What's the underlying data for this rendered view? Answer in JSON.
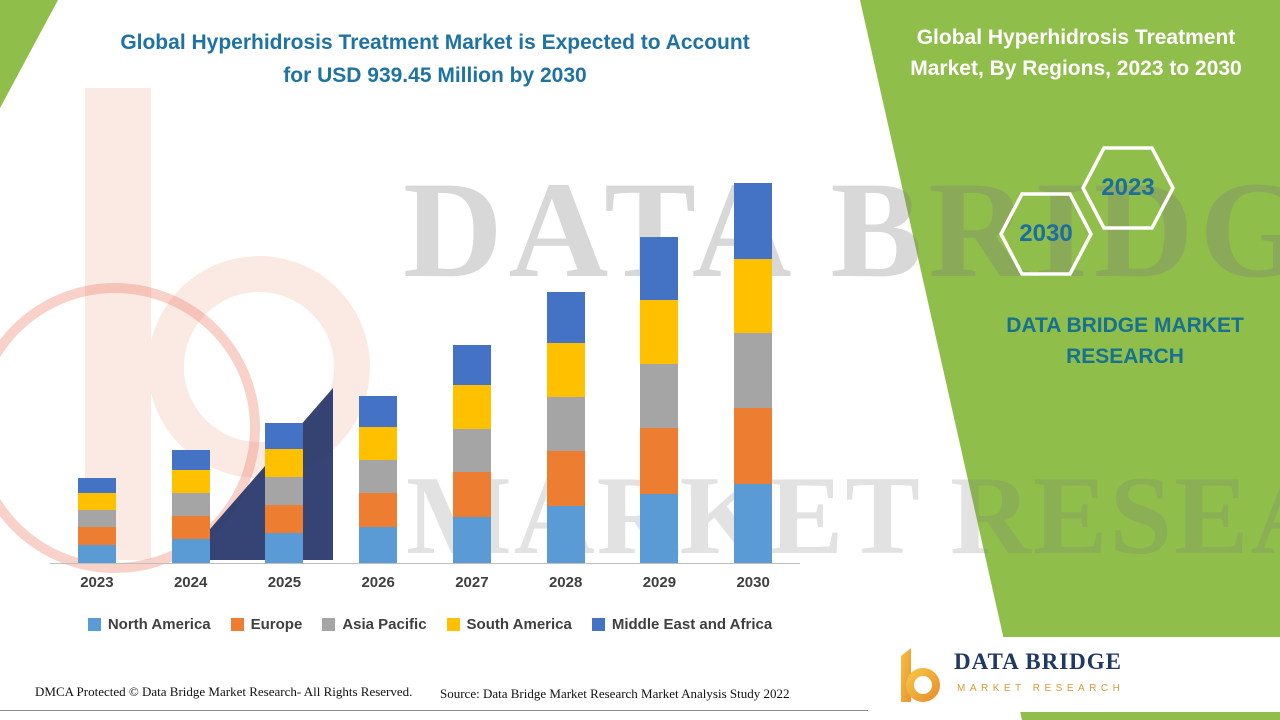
{
  "header": {
    "title_line1": "Global Hyperhidrosis Treatment Market is Expected to Account",
    "title_line2": "for USD 939.45 Million by 2030"
  },
  "side_panel": {
    "heading_line1": "Global Hyperhidrosis Treatment",
    "heading_line2": "Market, By Regions, 2023 to 2030",
    "hexagons": [
      {
        "label": "2030"
      },
      {
        "label": "2023"
      }
    ],
    "brand_line1": "DATA BRIDGE MARKET",
    "brand_line2": "RESEARCH"
  },
  "watermark": {
    "line1": "DATA BRIDGE",
    "line2": "MARKET RESEARCH"
  },
  "chart_data": {
    "type": "stacked-bar",
    "title": "Global Hyperhidrosis Treatment Market, By Regions, 2023 to 2030",
    "unit": "USD Million",
    "categories": [
      "2023",
      "2024",
      "2025",
      "2026",
      "2027",
      "2028",
      "2029",
      "2030"
    ],
    "series": [
      {
        "name": "North America",
        "color": "#5B9BD5",
        "values": [
          45,
          60,
          74,
          88,
          115,
          142,
          170,
          196
        ]
      },
      {
        "name": "Europe",
        "color": "#ED7D31",
        "values": [
          43,
          57,
          70,
          84,
          110,
          136,
          163,
          188
        ]
      },
      {
        "name": "Asia Pacific",
        "color": "#A5A5A5",
        "values": [
          42,
          56,
          69,
          82,
          107,
          133,
          159,
          184
        ]
      },
      {
        "name": "South America",
        "color": "#FFC000",
        "values": [
          42,
          56,
          69,
          82,
          107,
          133,
          159,
          184
        ]
      },
      {
        "name": "Middle East and Africa",
        "color": "#4472C4",
        "values": [
          38,
          51,
          64,
          77,
          100,
          126,
          155,
          187.45
        ]
      }
    ],
    "totals": [
      210,
      280,
      346,
      413,
      539,
      670,
      806,
      939.45
    ],
    "ylim": [
      0,
      939.45
    ],
    "grid": false,
    "legend_position": "bottom",
    "highlight_value": "USD 939.45 Million by 2030"
  },
  "footer": {
    "dmca": "DMCA Protected © Data Bridge Market Research- All Rights Reserved.",
    "source": "Source: Data Bridge Market Research Market Analysis Study 2022"
  },
  "logo_card": {
    "brand": "DATA BRIDGE",
    "tagline": "MARKET RESEARCH"
  },
  "colors": {
    "accent_green": "#90BE4A",
    "title_teal": "#1F73A3",
    "hexagon_text": "#1B6F9B",
    "logo_navy": "#203864",
    "logo_orange": "#EFA13C"
  }
}
